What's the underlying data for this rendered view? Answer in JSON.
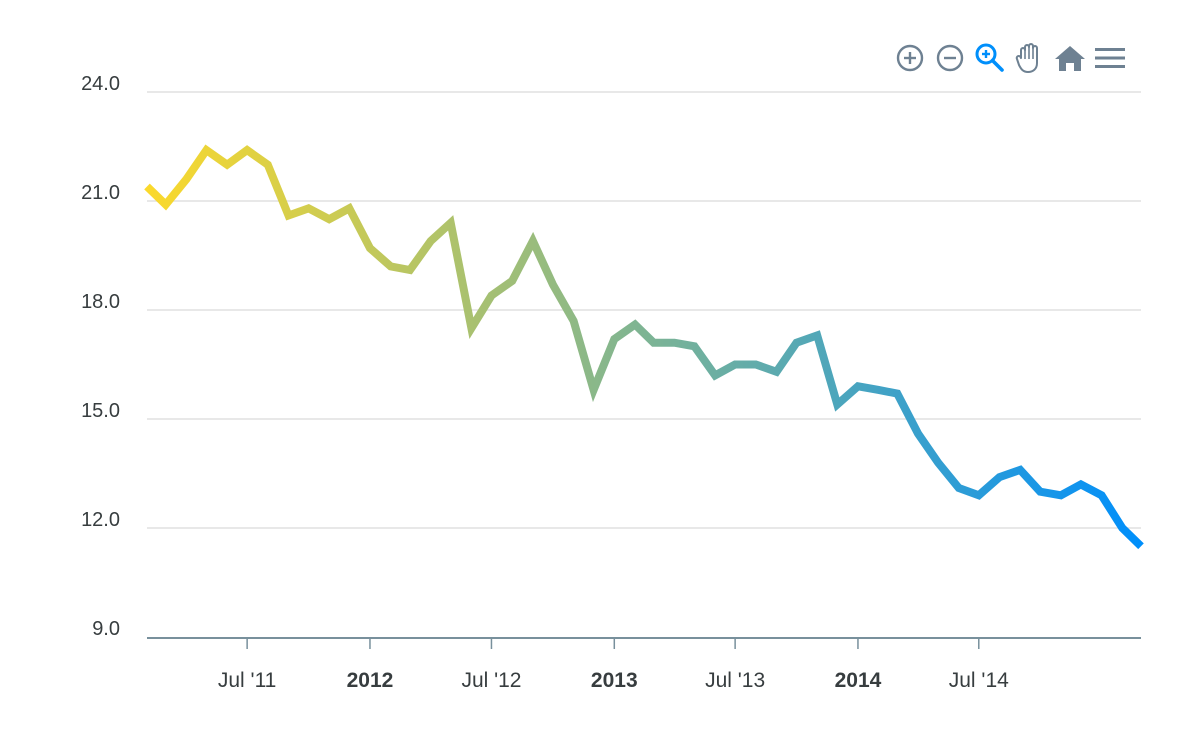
{
  "toolbar": {
    "icons": [
      "zoom-in-icon",
      "zoom-out-icon",
      "selection-zoom-icon",
      "pan-icon",
      "reset-home-icon",
      "menu-icon"
    ],
    "active": "selection-zoom-icon",
    "colors": {
      "default": "#6e8192",
      "active": "#008ffb"
    }
  },
  "chart_data": {
    "type": "line",
    "title": "",
    "xlabel": "",
    "ylabel": "",
    "ylim": [
      9,
      24
    ],
    "yticks": [
      "9.0",
      "12.0",
      "15.0",
      "18.0",
      "21.0",
      "24.0"
    ],
    "xlim": [
      "2011-02-01",
      "2015-03-01"
    ],
    "xticks": [
      {
        "date": "2011-07-01",
        "label": "Jul '11",
        "major": false
      },
      {
        "date": "2012-01-01",
        "label": "2012",
        "major": true
      },
      {
        "date": "2012-07-01",
        "label": "Jul '12",
        "major": false
      },
      {
        "date": "2013-01-01",
        "label": "2013",
        "major": true
      },
      {
        "date": "2013-07-01",
        "label": "Jul '13",
        "major": false
      },
      {
        "date": "2014-01-01",
        "label": "2014",
        "major": true
      },
      {
        "date": "2014-07-01",
        "label": "Jul '14",
        "major": false
      }
    ],
    "grid": true,
    "legend": "none",
    "gradient": [
      "#fbd92c",
      "#008ffb"
    ],
    "series": [
      {
        "x": [
          "2011-02",
          "2011-03",
          "2011-04",
          "2011-05",
          "2011-06",
          "2011-07",
          "2011-08",
          "2011-09",
          "2011-10",
          "2011-11",
          "2011-12",
          "2012-01",
          "2012-02",
          "2012-03",
          "2012-04",
          "2012-05",
          "2012-06",
          "2012-07",
          "2012-08",
          "2012-09",
          "2012-10",
          "2012-11",
          "2012-12",
          "2013-01",
          "2013-02",
          "2013-03",
          "2013-04",
          "2013-05",
          "2013-06",
          "2013-07",
          "2013-08",
          "2013-09",
          "2013-10",
          "2013-11",
          "2013-12",
          "2014-01",
          "2014-02",
          "2014-03",
          "2014-04",
          "2014-05",
          "2014-06",
          "2014-07",
          "2014-08",
          "2014-09",
          "2014-10",
          "2014-11",
          "2014-12",
          "2015-01",
          "2015-02",
          "2015-03"
        ],
        "values": [
          21.4,
          20.9,
          21.6,
          22.4,
          22.0,
          22.4,
          22.0,
          20.6,
          20.8,
          20.5,
          20.8,
          19.7,
          19.2,
          19.1,
          19.9,
          20.4,
          17.5,
          18.4,
          18.8,
          19.9,
          18.7,
          17.7,
          15.8,
          17.2,
          17.6,
          17.1,
          17.1,
          17.0,
          16.2,
          16.5,
          16.5,
          16.3,
          17.1,
          17.3,
          15.4,
          15.9,
          15.8,
          15.7,
          14.6,
          13.8,
          13.1,
          12.9,
          13.4,
          13.6,
          13.0,
          12.9,
          13.2,
          12.9,
          12.0,
          11.5
        ]
      }
    ]
  }
}
